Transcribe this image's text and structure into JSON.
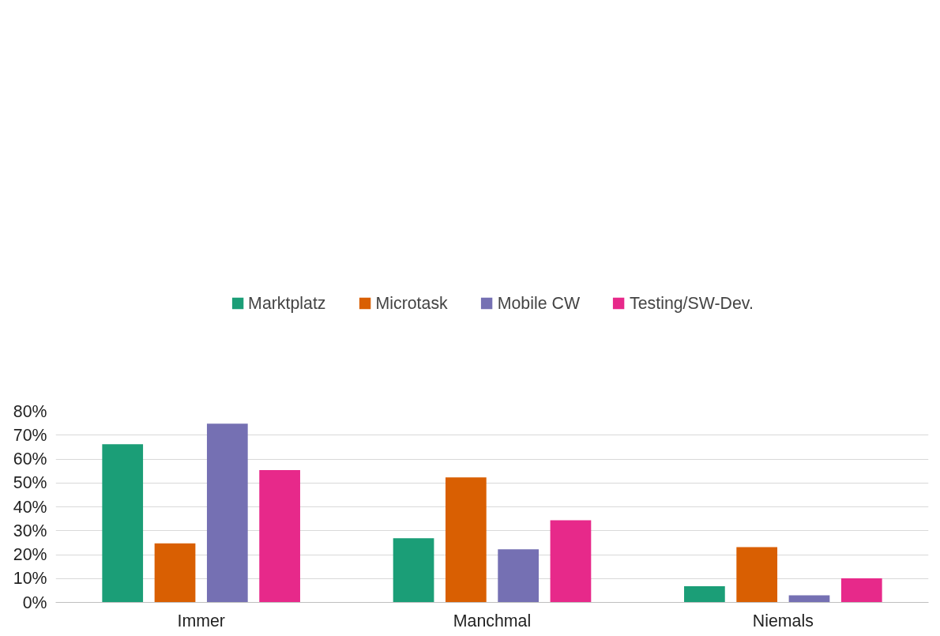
{
  "chart_data": {
    "type": "bar",
    "categories": [
      "Immer",
      "Manchmal",
      "Niemals"
    ],
    "series": [
      {
        "name": "Marktplatz",
        "color": "#1b9e77",
        "values": [
          66.2,
          26.9,
          6.8
        ]
      },
      {
        "name": "Microtask",
        "color": "#d95f02",
        "values": [
          24.7,
          52.3,
          23.1
        ]
      },
      {
        "name": "Mobile CW",
        "color": "#7570b3",
        "values": [
          74.8,
          22.2,
          3.0
        ]
      },
      {
        "name": "Testing/SW-Dev.",
        "color": "#e7298a",
        "values": [
          55.4,
          34.4,
          10.1
        ]
      }
    ],
    "ylim": [
      0,
      80
    ],
    "yticks": [
      {
        "value": 0,
        "label": "0%"
      },
      {
        "value": 10,
        "label": "10%"
      },
      {
        "value": 20,
        "label": "20%"
      },
      {
        "value": 30,
        "label": "30%"
      },
      {
        "value": 40,
        "label": "40%"
      },
      {
        "value": 50,
        "label": "50%"
      },
      {
        "value": 60,
        "label": "60%"
      },
      {
        "value": 70,
        "label": "70%"
      },
      {
        "value": 80,
        "label": "80%"
      }
    ],
    "grid": "y",
    "legend": "top"
  }
}
